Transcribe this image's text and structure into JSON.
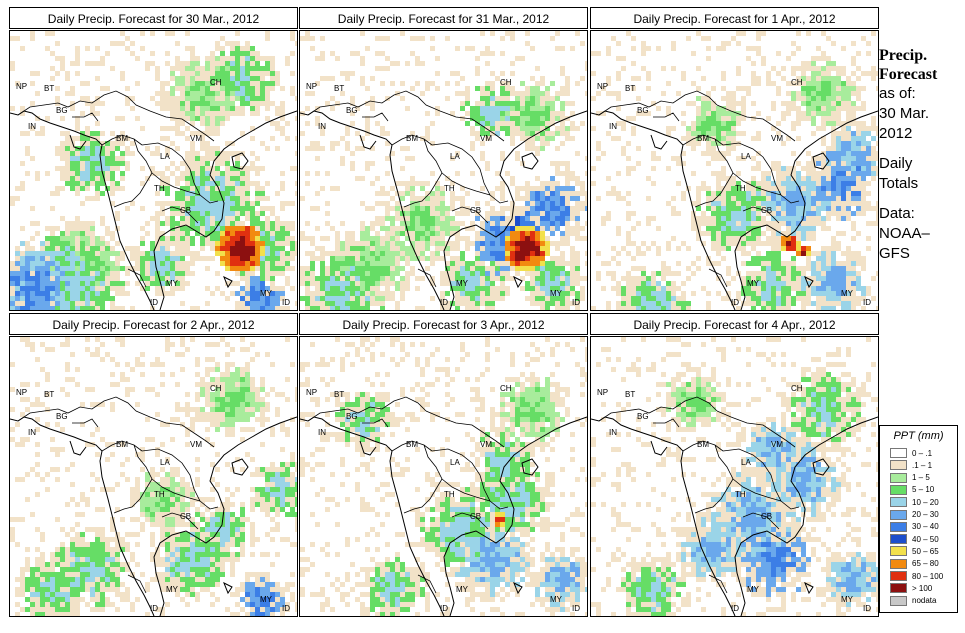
{
  "panels": [
    {
      "title": "Daily Precip. Forecast for  30 Mar., 2012"
    },
    {
      "title": "Daily Precip. Forecast for  31 Mar., 2012"
    },
    {
      "title": "Daily Precip. Forecast for  1 Apr., 2012"
    },
    {
      "title": "Daily Precip. Forecast for  2 Apr., 2012"
    },
    {
      "title": "Daily Precip. Forecast for  3 Apr., 2012"
    },
    {
      "title": "Daily Precip. Forecast for  4 Apr., 2012"
    }
  ],
  "country_labels": [
    "NP",
    "BT",
    "BG",
    "IN",
    "BM",
    "CH",
    "VM",
    "LA",
    "TH",
    "CB",
    "MY",
    "ID",
    "MY",
    "ID"
  ],
  "side": {
    "heading_line1": "Precip.",
    "heading_line2": "Forecast",
    "as_of": "as of:",
    "date_line1": "30 Mar.",
    "date_line2": "2012",
    "daily": "Daily",
    "totals": "Totals",
    "data_label": "Data:",
    "source_line1": "NOAA–",
    "source_line2": "GFS"
  },
  "legend": {
    "title": "PPT (mm)",
    "items": [
      {
        "label": "0 – .1",
        "color": "#ffffff"
      },
      {
        "label": ".1 – 1",
        "color": "#f2e2c8"
      },
      {
        "label": "1 – 5",
        "color": "#a8ec9c"
      },
      {
        "label": "5 – 10",
        "color": "#66dd66"
      },
      {
        "label": "10 – 20",
        "color": "#9ad4e8"
      },
      {
        "label": "20 – 30",
        "color": "#6aa8ec"
      },
      {
        "label": "30 – 40",
        "color": "#3c7ee6"
      },
      {
        "label": "40 – 50",
        "color": "#1c4ecc"
      },
      {
        "label": "50 – 65",
        "color": "#f2e04c"
      },
      {
        "label": "65 – 80",
        "color": "#f28a10"
      },
      {
        "label": "80 – 100",
        "color": "#e03010"
      },
      {
        "label": "> 100",
        "color": "#8c1010"
      },
      {
        "label": "nodata",
        "color": "#c8c8c8"
      }
    ]
  }
}
